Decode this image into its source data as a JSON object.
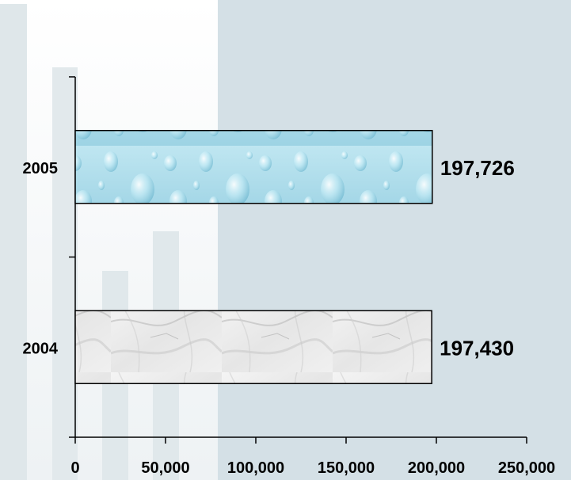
{
  "chart_data": {
    "type": "bar",
    "orientation": "horizontal",
    "categories": [
      "2005",
      "2004"
    ],
    "values": [
      197726,
      197430
    ],
    "data_labels": [
      "197,726",
      "197,430"
    ],
    "xlim": [
      0,
      250000
    ],
    "x_ticks": [
      0,
      50000,
      100000,
      150000,
      200000,
      250000
    ],
    "x_tick_labels": [
      "0",
      "50,000",
      "100,000",
      "150,000",
      "200,000",
      "250,000"
    ],
    "grid": false,
    "legend": "none",
    "bar_textures": [
      "water-drops",
      "marble"
    ]
  }
}
